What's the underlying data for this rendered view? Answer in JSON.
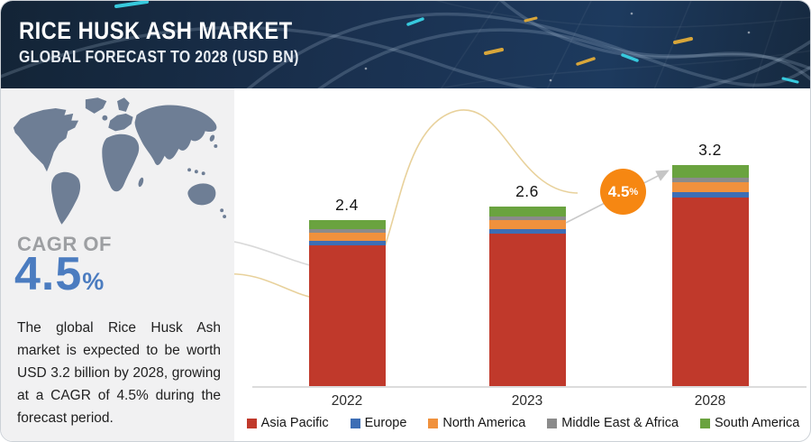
{
  "header": {
    "title": "RICE HUSK ASH MARKET",
    "subtitle": "GLOBAL FORECAST TO 2028 (USD BN)"
  },
  "sidebar": {
    "cagr_label": "CAGR OF",
    "cagr_value": "4.5",
    "cagr_unit": "%",
    "description": "The global Rice Husk Ash market is expected to be worth USD 3.2 billion by 2028, growing at a CAGR of 4.5% during the forecast period.",
    "map_icon": "world-map"
  },
  "chart_data": {
    "type": "bar",
    "stacked": true,
    "title": "Rice Husk Ash Market, Global Forecast to 2028 (USD BN)",
    "categories": [
      "2022",
      "2023",
      "2028"
    ],
    "totals": [
      2.4,
      2.6,
      3.2
    ],
    "series": [
      {
        "name": "Asia Pacific",
        "color": "#c0392b",
        "values": [
          2.04,
          2.21,
          2.73
        ]
      },
      {
        "name": "Europe",
        "color": "#3d6eb5",
        "values": [
          0.07,
          0.07,
          0.08
        ]
      },
      {
        "name": "North America",
        "color": "#f0913d",
        "values": [
          0.11,
          0.12,
          0.14
        ]
      },
      {
        "name": "Middle East & Africa",
        "color": "#8b8b8b",
        "values": [
          0.05,
          0.06,
          0.07
        ]
      },
      {
        "name": "South America",
        "color": "#6aa33f",
        "values": [
          0.13,
          0.14,
          0.18
        ]
      }
    ],
    "badge": {
      "value": "4.5",
      "unit": "%"
    },
    "xlabel": "",
    "ylabel": "USD BN",
    "ylim": [
      0,
      3.5
    ],
    "grid": false,
    "legend_position": "bottom",
    "value_label_format": "one-decimal"
  },
  "colors": {
    "header_bg": "#1a3150",
    "sidebar_bg": "#f1f1f2",
    "cagr_blue": "#4b7cc0",
    "badge_orange": "#f68712",
    "axis_gray": "#dcdcdc",
    "map_fill": "#6e7e95"
  }
}
